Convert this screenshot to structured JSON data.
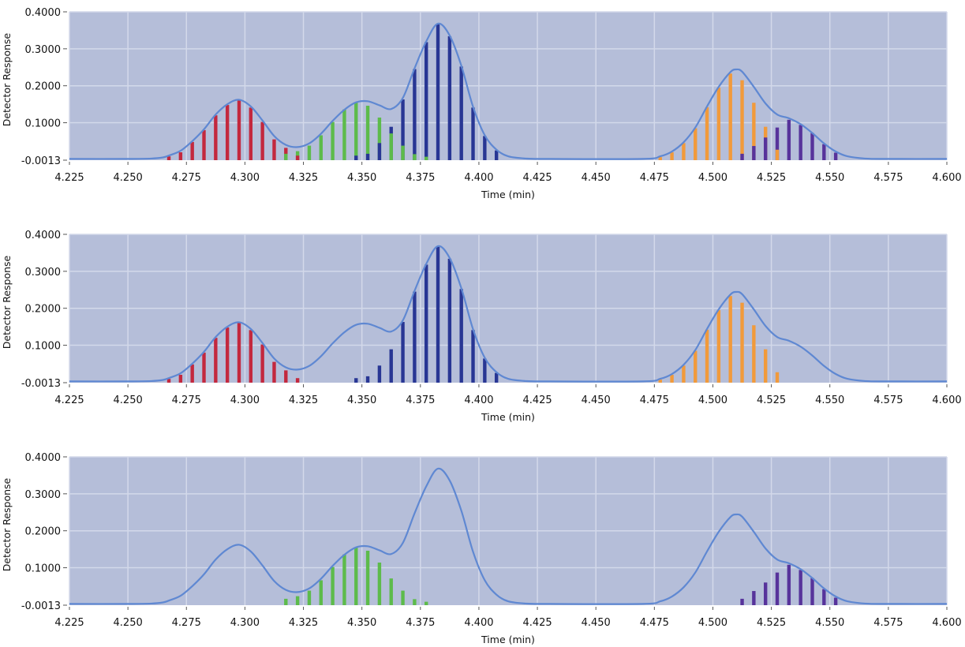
{
  "chart_data": {
    "type": "bar",
    "xlabel": "Time (min)",
    "ylabel": "Detector Response",
    "xlim": [
      4.225,
      4.6
    ],
    "ylim": [
      -0.0013,
      0.4
    ],
    "x_ticks": [
      "4.225",
      "4.250",
      "4.275",
      "4.300",
      "4.325",
      "4.350",
      "4.375",
      "4.400",
      "4.425",
      "4.450",
      "4.475",
      "4.500",
      "4.525",
      "4.550",
      "4.575",
      "4.600"
    ],
    "y_ticks": [
      "-0.0013",
      "0.1000",
      "0.2000",
      "0.3000",
      "0.4000"
    ],
    "y_tick_values": [
      -0.0013,
      0.1,
      0.2,
      0.3,
      0.4
    ],
    "grid": true,
    "colors": {
      "background": "#b5bed9",
      "grid": "#d3d9ea",
      "curve": "#5f88d2"
    },
    "curve": {
      "x": [
        4.225,
        4.25,
        4.26,
        4.265,
        4.2675,
        4.2725,
        4.2775,
        4.2825,
        4.2875,
        4.2925,
        4.2975,
        4.3025,
        4.3075,
        4.3125,
        4.3175,
        4.3225,
        4.3275,
        4.3325,
        4.3375,
        4.3425,
        4.3475,
        4.3525,
        4.3575,
        4.3625,
        4.3675,
        4.3725,
        4.3775,
        4.3825,
        4.3875,
        4.3925,
        4.3975,
        4.4025,
        4.4075,
        4.4125,
        4.42,
        4.43,
        4.47,
        4.4775,
        4.4825,
        4.4875,
        4.4925,
        4.4975,
        4.5025,
        4.5075,
        4.51,
        4.5125,
        4.5175,
        4.5225,
        4.5275,
        4.5325,
        4.5375,
        4.5425,
        4.5475,
        4.5525,
        4.5575,
        4.565,
        4.575,
        4.6
      ],
      "y": [
        0,
        0,
        0.001,
        0.004,
        0.009,
        0.022,
        0.048,
        0.08,
        0.12,
        0.148,
        0.16,
        0.142,
        0.104,
        0.062,
        0.038,
        0.032,
        0.042,
        0.068,
        0.103,
        0.133,
        0.153,
        0.156,
        0.145,
        0.135,
        0.165,
        0.245,
        0.318,
        0.366,
        0.334,
        0.252,
        0.141,
        0.064,
        0.025,
        0.007,
        0.001,
        0,
        0,
        0.007,
        0.02,
        0.045,
        0.085,
        0.142,
        0.195,
        0.235,
        0.242,
        0.236,
        0.195,
        0.15,
        0.12,
        0.11,
        0.094,
        0.07,
        0.042,
        0.02,
        0.007,
        0.001,
        0,
        0
      ]
    },
    "series": [
      {
        "name": "red",
        "color": "#c3283e",
        "start": 4.2675,
        "step": 0.005,
        "values": [
          0.009,
          0.02,
          0.048,
          0.08,
          0.12,
          0.148,
          0.16,
          0.141,
          0.102,
          0.055,
          0.032,
          0.011
        ]
      },
      {
        "name": "green",
        "color": "#5dbb4b",
        "start": 4.3175,
        "step": 0.005,
        "values": [
          0.016,
          0.023,
          0.038,
          0.066,
          0.102,
          0.136,
          0.155,
          0.146,
          0.114,
          0.071,
          0.038,
          0.015,
          0.008
        ]
      },
      {
        "name": "blue",
        "color": "#283694",
        "start": 4.3475,
        "step": 0.005,
        "values": [
          0.011,
          0.016,
          0.045,
          0.089,
          0.163,
          0.245,
          0.318,
          0.366,
          0.334,
          0.252,
          0.141,
          0.064,
          0.025
        ]
      },
      {
        "name": "orange",
        "color": "#f19a3b",
        "start": 4.4775,
        "step": 0.005,
        "values": [
          0.007,
          0.02,
          0.045,
          0.085,
          0.142,
          0.195,
          0.233,
          0.215,
          0.154,
          0.089,
          0.027
        ]
      },
      {
        "name": "purple",
        "color": "#57339b",
        "start": 4.5125,
        "step": 0.005,
        "values": [
          0.016,
          0.037,
          0.06,
          0.087,
          0.108,
          0.094,
          0.072,
          0.042,
          0.019
        ]
      }
    ],
    "panels": [
      {
        "series": [
          "red",
          "green",
          "blue",
          "orange",
          "purple"
        ]
      },
      {
        "series": [
          "red",
          "blue",
          "orange"
        ]
      },
      {
        "series": [
          "green",
          "purple"
        ]
      }
    ]
  }
}
